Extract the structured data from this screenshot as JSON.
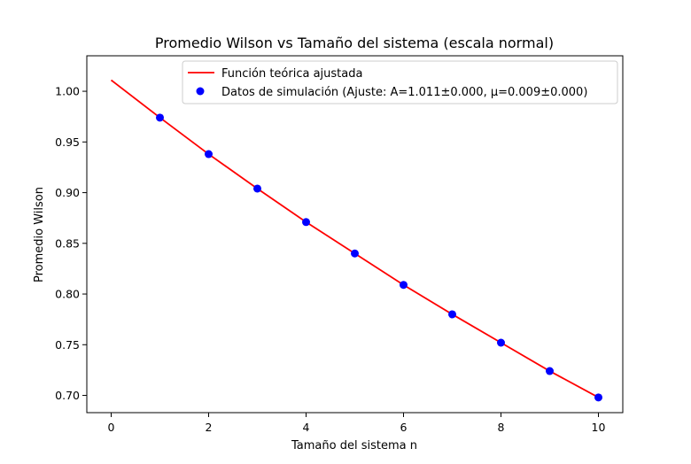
{
  "chart_data": {
    "type": "line",
    "title": "Promedio Wilson vs Tamaño del sistema (escala normal)",
    "xlabel": "Tamaño del sistema n",
    "ylabel": "Promedio Wilson",
    "xlim": [
      -0.5,
      10.5
    ],
    "ylim": [
      0.683,
      1.035
    ],
    "xticks": [
      0,
      2,
      4,
      6,
      8,
      10
    ],
    "xtick_labels": [
      "0",
      "2",
      "4",
      "6",
      "8",
      "10"
    ],
    "yticks": [
      0.7,
      0.75,
      0.8,
      0.85,
      0.9,
      0.95,
      1.0
    ],
    "ytick_labels": [
      "0.70",
      "0.75",
      "0.80",
      "0.85",
      "0.90",
      "0.95",
      "1.00"
    ],
    "grid": false,
    "legend_position": "top-right",
    "series": [
      {
        "name": "Función teórica ajustada",
        "kind": "line",
        "color": "#ff0000",
        "x": [
          0,
          1,
          2,
          3,
          4,
          5,
          6,
          7,
          8,
          9,
          10
        ],
        "y": [
          1.011,
          0.974,
          0.938,
          0.904,
          0.871,
          0.84,
          0.809,
          0.78,
          0.752,
          0.724,
          0.698
        ]
      },
      {
        "name": "Datos de simulación (Ajuste: A=1.011±0.000, μ=0.009±0.000)",
        "kind": "scatter",
        "color": "#0000ff",
        "x": [
          1,
          2,
          3,
          4,
          5,
          6,
          7,
          8,
          9,
          10
        ],
        "y": [
          0.974,
          0.938,
          0.904,
          0.871,
          0.84,
          0.809,
          0.78,
          0.752,
          0.724,
          0.698
        ]
      }
    ]
  }
}
